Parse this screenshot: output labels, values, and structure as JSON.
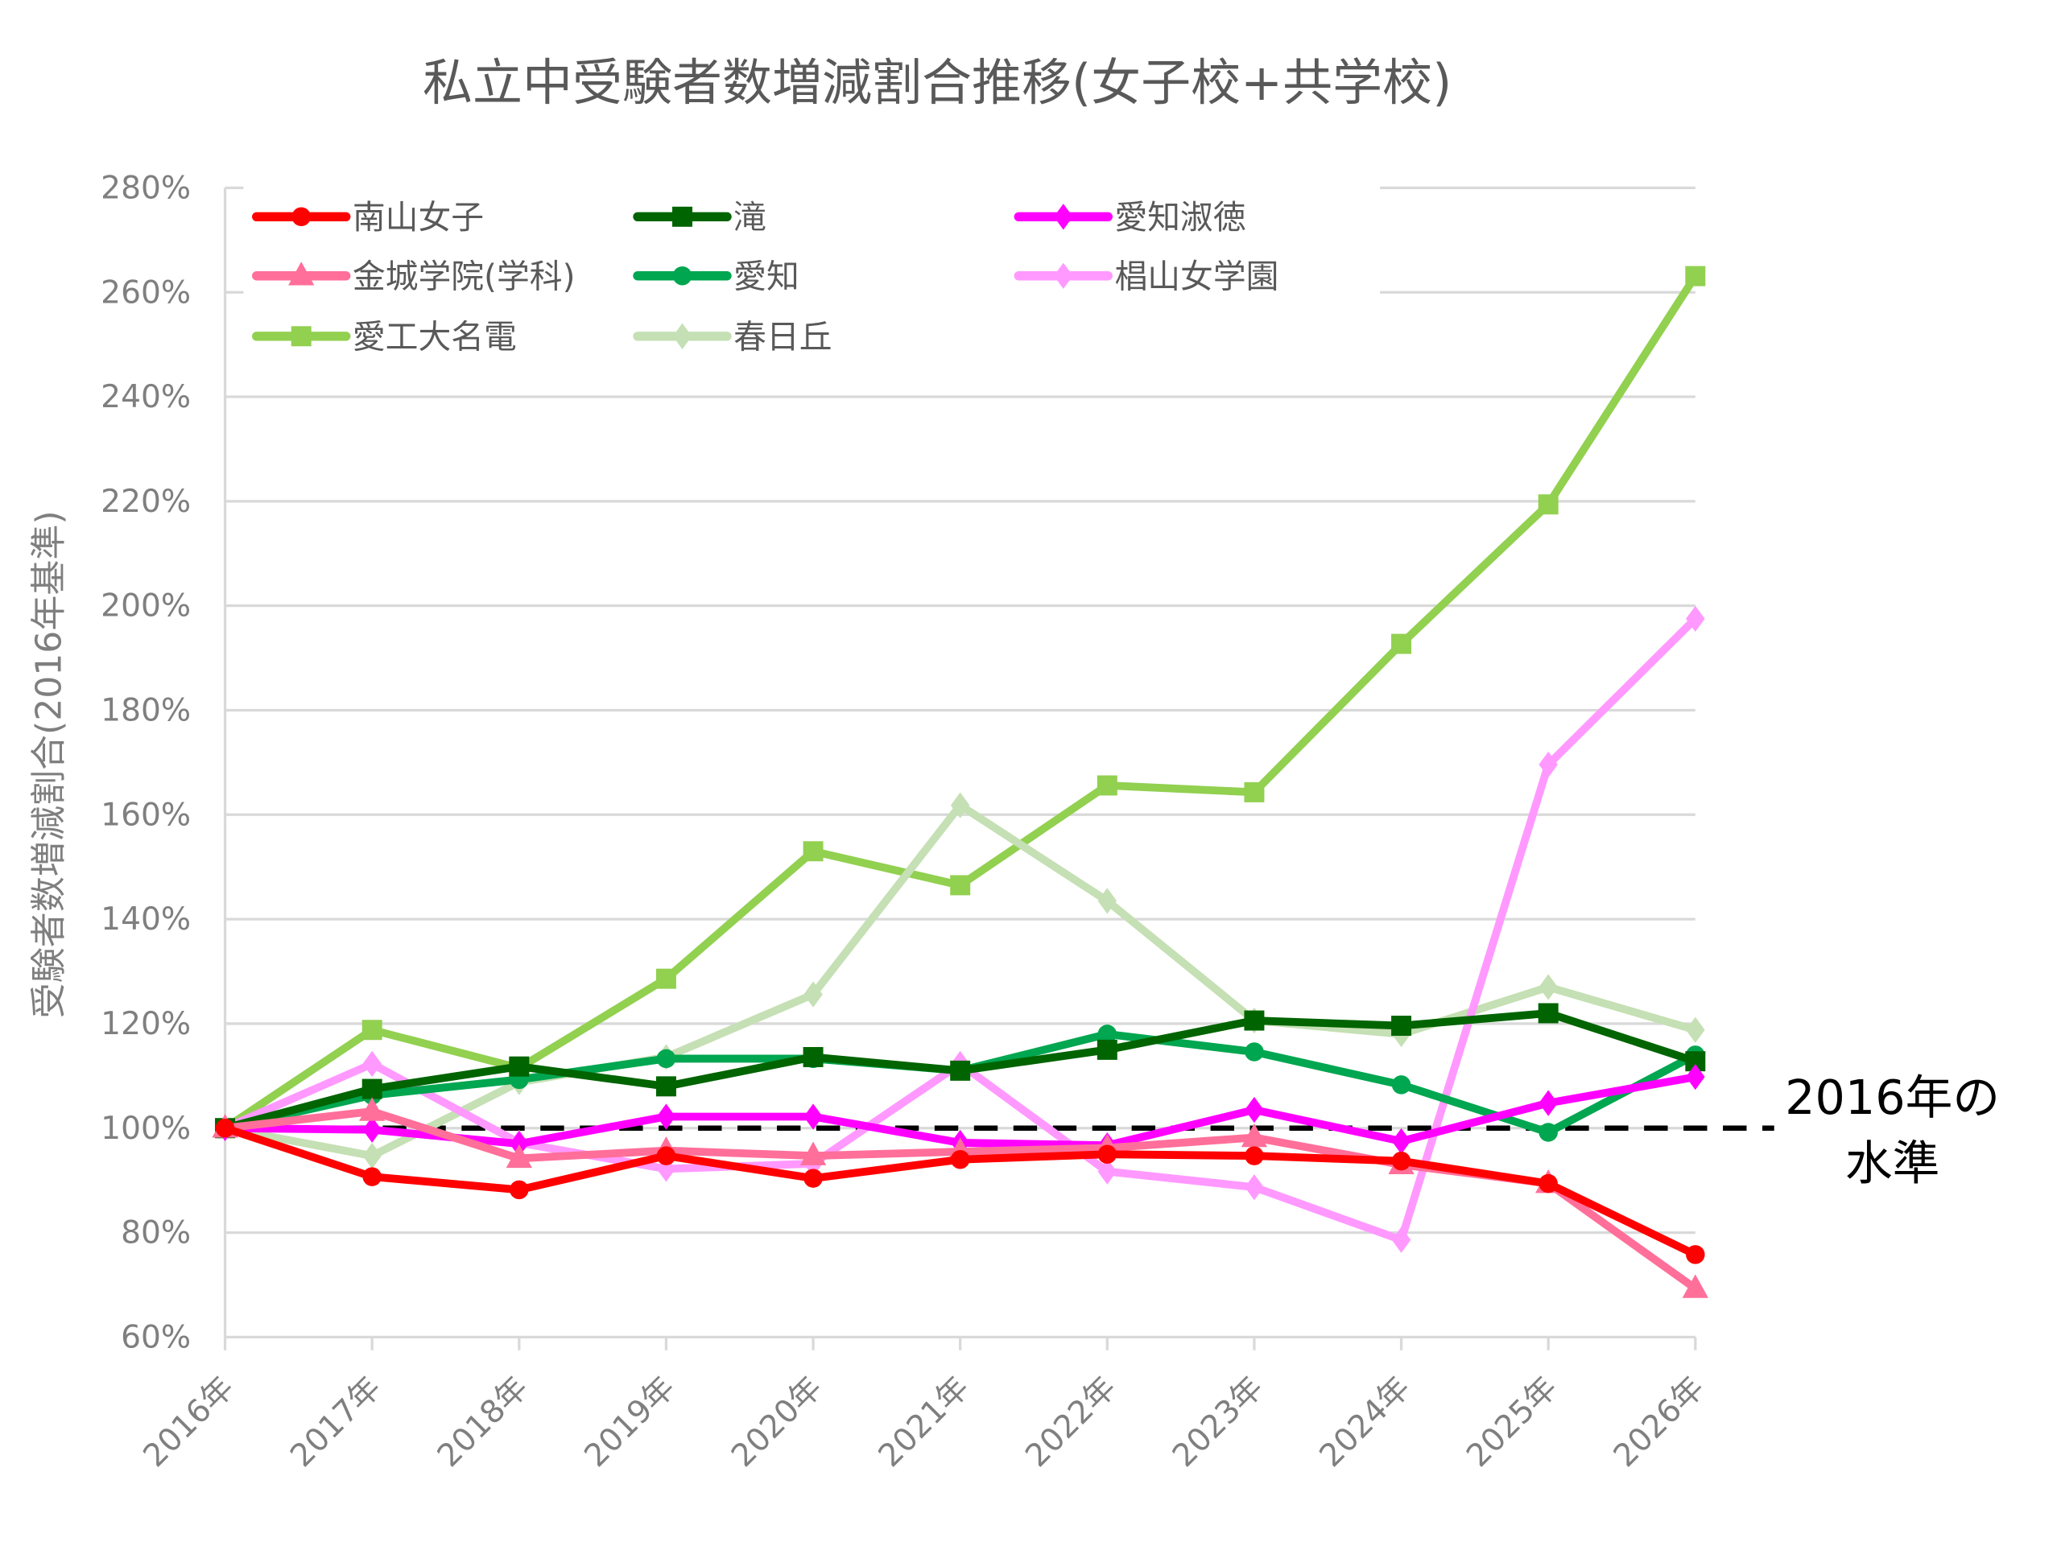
{
  "chart_data": {
    "type": "line",
    "title": "私立中受験者数増減割合推移(女子校+共学校)",
    "xlabel": "",
    "ylabel": "受験者数増減割合(2016年基準)",
    "ylim": [
      60,
      280
    ],
    "ytick_step": 20,
    "ytick_suffix": "%",
    "grid": true,
    "legend_position": "top-left",
    "categories": [
      "2016年",
      "2017年",
      "2018年",
      "2019年",
      "2020年",
      "2021年",
      "2022年",
      "2023年",
      "2024年",
      "2025年",
      "2026年"
    ],
    "series": [
      {
        "name": "南山女子",
        "color": "#ff0000",
        "marker": "circle",
        "values": [
          100,
          90.7,
          88.2,
          94.7,
          90.4,
          94.0,
          95.0,
          94.7,
          93.7,
          89.4,
          75.8
        ]
      },
      {
        "name": "滝",
        "color": "#006400",
        "marker": "square",
        "values": [
          100,
          107.5,
          111.8,
          108.0,
          113.6,
          111.0,
          115.0,
          120.6,
          119.6,
          122.0,
          112.8
        ]
      },
      {
        "name": "愛知淑徳",
        "color": "#ff00ff",
        "marker": "diamond",
        "values": [
          100,
          99.7,
          97.0,
          102.2,
          102.2,
          97.2,
          96.7,
          103.5,
          97.5,
          104.8,
          109.8
        ]
      },
      {
        "name": "金城学院(学科)",
        "color": "#ff6f9a",
        "marker": "triangle",
        "values": [
          100,
          103.2,
          94.2,
          95.7,
          94.7,
          95.5,
          96.2,
          98.2,
          93.0,
          89.4,
          69.3
        ]
      },
      {
        "name": "愛知",
        "color": "#00a650",
        "marker": "circle",
        "values": [
          100,
          106.3,
          109.3,
          113.3,
          113.3,
          111.0,
          118.0,
          114.6,
          108.3,
          99.2,
          114.0
        ]
      },
      {
        "name": "椙山女学園",
        "color": "#ff99ff",
        "marker": "diamond",
        "values": [
          100,
          112.3,
          97.2,
          92.2,
          93.2,
          112.3,
          91.7,
          88.7,
          78.6,
          169.6,
          197.5
        ]
      },
      {
        "name": "愛工大名電",
        "color": "#92d050",
        "marker": "square",
        "values": [
          100,
          118.8,
          111.5,
          128.6,
          153.0,
          146.5,
          165.6,
          164.3,
          192.7,
          219.4,
          263.1
        ]
      },
      {
        "name": "春日丘",
        "color": "#c5e0b4",
        "marker": "diamond",
        "values": [
          100,
          94.7,
          108.8,
          113.6,
          125.6,
          161.8,
          143.5,
          120.6,
          118.0,
          127.0,
          118.8
        ]
      }
    ],
    "reference_line": {
      "value": 100,
      "label_line1": "2016年の",
      "label_line2": "水準"
    }
  }
}
